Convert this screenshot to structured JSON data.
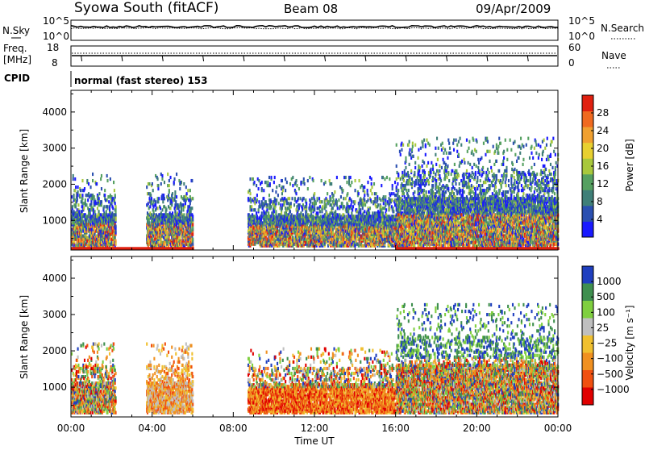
{
  "header": {
    "station": "Syowa South (fitACF)",
    "beam": "Beam 08",
    "date": "09/Apr/2009"
  },
  "status_panels": {
    "nsky_label": "N.Sky",
    "nsky_ticks": [
      "10^5",
      "10^0"
    ],
    "nsearch_label": "N.Search",
    "nsearch_ticks": [
      "10^5",
      "10^0"
    ],
    "freq_label_1": "Freq.",
    "freq_label_2": "[MHz]",
    "freq_ticks": [
      "18",
      "8"
    ],
    "nave_label": "Nave",
    "nave_ticks": [
      "60",
      "0"
    ],
    "cpid_label": "CPID",
    "cpid_value": "normal (fast stereo) 153"
  },
  "chart_data": [
    {
      "type": "heatmap",
      "name": "power",
      "ylabel": "Slant Range [km]",
      "ylim": [
        180,
        4600
      ],
      "y_ticks": [
        "4000",
        "3000",
        "2000",
        "1000"
      ],
      "y_tick_values": [
        4000,
        3000,
        2000,
        1000
      ],
      "colorbar_label": "Power [dB]",
      "colorbar_ticks": [
        "28",
        "24",
        "20",
        "16",
        "12",
        "8",
        "4"
      ],
      "colorbar_tick_values": [
        28,
        24,
        20,
        16,
        12,
        8,
        4
      ],
      "color_scale": [
        "#1a1aff",
        "#2a4fb0",
        "#3f7f78",
        "#55a060",
        "#a8c83c",
        "#e8d030",
        "#f0a030",
        "#f06a20",
        "#e02010"
      ],
      "approx_echo_regions": [
        {
          "t_start": 0.0,
          "t_end": 2.2,
          "range_start": 300,
          "range_end": 2300,
          "power": "8-24"
        },
        {
          "t_start": 3.7,
          "t_end": 6.0,
          "range_start": 300,
          "range_end": 2300,
          "power": "8-24"
        },
        {
          "t_start": 8.7,
          "t_end": 16.0,
          "range_start": 300,
          "range_end": 2200,
          "power": "4-24"
        },
        {
          "t_start": 16.0,
          "t_end": 24.0,
          "range_start": 300,
          "range_end": 3300,
          "power": "4-28"
        },
        {
          "t_start": 0.0,
          "t_end": 6.0,
          "range_start": 180,
          "range_end": 260,
          "power": "28"
        },
        {
          "t_start": 16.0,
          "t_end": 24.0,
          "range_start": 180,
          "range_end": 260,
          "power": "28"
        }
      ]
    },
    {
      "type": "heatmap",
      "name": "velocity",
      "ylabel": "Slant Range [km]",
      "xlabel": "Time UT",
      "ylim": [
        180,
        4600
      ],
      "y_ticks": [
        "4000",
        "3000",
        "2000",
        "1000"
      ],
      "y_tick_values": [
        4000,
        3000,
        2000,
        1000
      ],
      "x_ticks": [
        "00:00",
        "04:00",
        "08:00",
        "12:00",
        "16:00",
        "20:00",
        "00:00"
      ],
      "x_tick_values": [
        0,
        4,
        8,
        12,
        16,
        20,
        24
      ],
      "colorbar_label": "Velocity [m s⁻¹]",
      "colorbar_ticks": [
        "1000",
        "500",
        "100",
        "25",
        "−25",
        "−100",
        "−500",
        "−1000"
      ],
      "colorbar_tick_values": [
        1000,
        500,
        100,
        25,
        -25,
        -100,
        -500,
        -1000
      ],
      "color_scale": [
        "#1f3fbf",
        "#3f8f4f",
        "#7fcf3f",
        "#bfbfbf",
        "#f0c030",
        "#f09020",
        "#f05010",
        "#e00000"
      ],
      "approx_echo_regions": [
        {
          "t_start": 0.0,
          "t_end": 2.2,
          "range_start": 300,
          "range_end": 2200,
          "velocity": "-500 to 100"
        },
        {
          "t_start": 3.7,
          "t_end": 6.0,
          "range_start": 300,
          "range_end": 2200,
          "velocity": "-500 to -25"
        },
        {
          "t_start": 8.7,
          "t_end": 16.0,
          "range_start": 300,
          "range_end": 2100,
          "velocity": "-1000 to 100"
        },
        {
          "t_start": 16.0,
          "t_end": 24.0,
          "range_start": 300,
          "range_end": 3300,
          "velocity": "-500 to 1000"
        }
      ]
    }
  ]
}
